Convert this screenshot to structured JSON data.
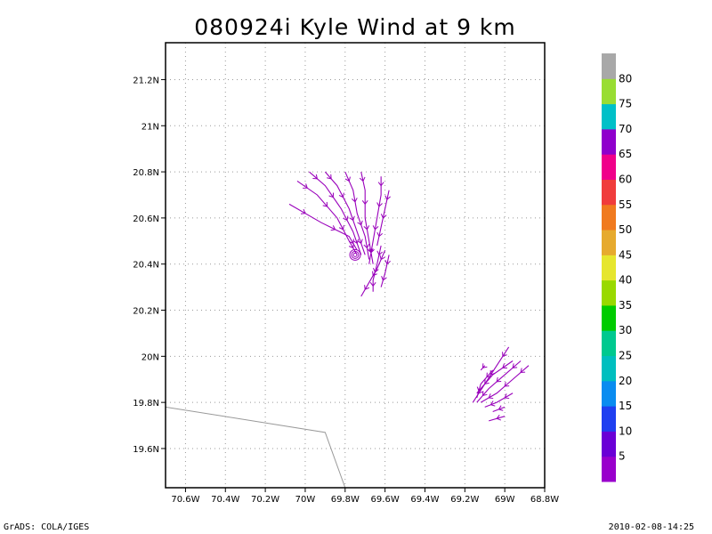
{
  "chart_data": {
    "type": "vector_streamline",
    "title": "080924i Kyle Wind at 9 km",
    "x_ticks": [
      "70.6W",
      "70.4W",
      "70.2W",
      "70W",
      "69.8W",
      "69.6W",
      "69.4W",
      "69.2W",
      "69W",
      "68.8W"
    ],
    "y_ticks": [
      "19.6N",
      "19.8N",
      "20N",
      "20.2N",
      "20.4N",
      "20.6N",
      "20.8N",
      "21N",
      "21.2N"
    ],
    "xlim": [
      -70.7,
      -68.8
    ],
    "ylim": [
      19.43,
      21.36
    ],
    "grid": true,
    "colorbar": {
      "labels": [
        "5",
        "10",
        "15",
        "20",
        "25",
        "30",
        "35",
        "40",
        "45",
        "50",
        "55",
        "60",
        "65",
        "70",
        "75",
        "80"
      ],
      "colors": [
        "#9900cc",
        "#6a00d6",
        "#1f3ff0",
        "#0a8cf0",
        "#00bfbf",
        "#00c98f",
        "#00cc00",
        "#99d900",
        "#e6e62e",
        "#e6aa2e",
        "#f07a1f",
        "#f03c3c",
        "#f0008a",
        "#8f00cc",
        "#00c0c8",
        "#99dd33",
        "#a8a8a8"
      ]
    },
    "vector_color": "#9900bb",
    "coastline": [
      [
        -70.7,
        19.78
      ],
      [
        -69.9,
        19.67
      ],
      [
        -69.8,
        19.43
      ]
    ],
    "streamlines": [
      [
        [
          -70.08,
          20.66
        ],
        [
          -69.92,
          20.58
        ],
        [
          -69.78,
          20.52
        ],
        [
          -69.74,
          20.46
        ]
      ],
      [
        [
          -70.04,
          20.76
        ],
        [
          -69.94,
          20.7
        ],
        [
          -69.84,
          20.6
        ],
        [
          -69.78,
          20.5
        ],
        [
          -69.74,
          20.44
        ]
      ],
      [
        [
          -69.98,
          20.8
        ],
        [
          -69.9,
          20.74
        ],
        [
          -69.82,
          20.64
        ],
        [
          -69.76,
          20.54
        ],
        [
          -69.72,
          20.44
        ]
      ],
      [
        [
          -69.9,
          20.8
        ],
        [
          -69.84,
          20.74
        ],
        [
          -69.78,
          20.64
        ],
        [
          -69.74,
          20.54
        ],
        [
          -69.7,
          20.44
        ]
      ],
      [
        [
          -69.8,
          20.8
        ],
        [
          -69.76,
          20.72
        ],
        [
          -69.74,
          20.62
        ],
        [
          -69.7,
          20.52
        ],
        [
          -69.68,
          20.42
        ]
      ],
      [
        [
          -69.72,
          20.8
        ],
        [
          -69.7,
          20.72
        ],
        [
          -69.7,
          20.6
        ],
        [
          -69.68,
          20.5
        ],
        [
          -69.66,
          20.4
        ]
      ],
      [
        [
          -69.62,
          20.78
        ],
        [
          -69.62,
          20.7
        ],
        [
          -69.64,
          20.6
        ],
        [
          -69.66,
          20.5
        ],
        [
          -69.68,
          20.4
        ]
      ],
      [
        [
          -69.58,
          20.72
        ],
        [
          -69.6,
          20.64
        ],
        [
          -69.62,
          20.56
        ],
        [
          -69.64,
          20.48
        ]
      ],
      [
        [
          -69.6,
          20.46
        ],
        [
          -69.64,
          20.38
        ],
        [
          -69.68,
          20.32
        ],
        [
          -69.72,
          20.26
        ]
      ],
      [
        [
          -69.58,
          20.44
        ],
        [
          -69.6,
          20.36
        ],
        [
          -69.62,
          20.3
        ]
      ],
      [
        [
          -69.62,
          20.48
        ],
        [
          -69.64,
          20.4
        ],
        [
          -69.66,
          20.33
        ],
        [
          -69.66,
          20.28
        ]
      ],
      [
        [
          -68.98,
          20.04
        ],
        [
          -69.04,
          19.96
        ],
        [
          -69.1,
          19.88
        ],
        [
          -69.16,
          19.8
        ]
      ],
      [
        [
          -68.92,
          19.98
        ],
        [
          -69.0,
          19.92
        ],
        [
          -69.08,
          19.86
        ],
        [
          -69.14,
          19.8
        ]
      ],
      [
        [
          -68.88,
          19.96
        ],
        [
          -68.96,
          19.9
        ],
        [
          -69.04,
          19.84
        ],
        [
          -69.12,
          19.8
        ]
      ],
      [
        [
          -68.96,
          19.98
        ],
        [
          -69.06,
          19.92
        ],
        [
          -69.14,
          19.84
        ]
      ],
      [
        [
          -69.06,
          19.94
        ],
        [
          -69.12,
          19.88
        ],
        [
          -69.14,
          19.82
        ]
      ],
      [
        [
          -68.96,
          19.84
        ],
        [
          -69.04,
          19.8
        ],
        [
          -69.1,
          19.78
        ]
      ],
      [
        [
          -69.0,
          19.78
        ],
        [
          -69.06,
          19.76
        ]
      ],
      [
        [
          -69.0,
          19.74
        ],
        [
          -69.08,
          19.72
        ]
      ],
      [
        [
          -69.1,
          19.96
        ],
        [
          -69.12,
          19.94
        ]
      ]
    ],
    "vortex": [
      -69.75,
      20.44
    ]
  },
  "footer": {
    "left": "GrADS: COLA/IGES",
    "right": "2010-02-08-14:25"
  }
}
